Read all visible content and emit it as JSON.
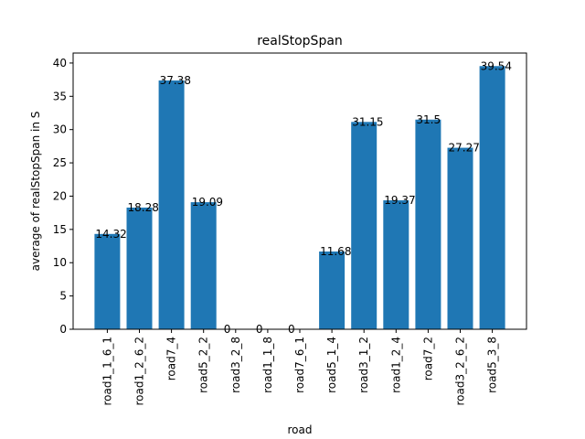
{
  "chart_data": {
    "type": "bar",
    "title": "realStopSpan",
    "xlabel": "road",
    "ylabel": "average of realStopSpan in S",
    "categories": [
      "road1_1_6_1",
      "road1_2_6_2",
      "road7_4",
      "road5_2_2",
      "road3_2_8",
      "road1_1_8",
      "road7_6_1",
      "road5_1_4",
      "road3_1_2",
      "road1_2_4",
      "road7_2",
      "road3_2_6_2",
      "road5_3_8"
    ],
    "values": [
      14.32,
      18.28,
      37.38,
      19.09,
      0,
      0,
      0,
      11.68,
      31.15,
      19.37,
      31.5,
      27.27,
      39.54
    ],
    "data_labels": [
      "14.32",
      "18.28",
      "37.38",
      "19.09",
      "0",
      "0",
      "0",
      "11.68",
      "31.15",
      "19.37",
      "31.5",
      "27.27",
      "39.54"
    ],
    "ylim": [
      0,
      41.5
    ],
    "yticks": [
      0,
      5,
      10,
      15,
      20,
      25,
      30,
      35,
      40
    ],
    "bar_color": "#1f77b4",
    "grid": false,
    "legend": "none"
  }
}
